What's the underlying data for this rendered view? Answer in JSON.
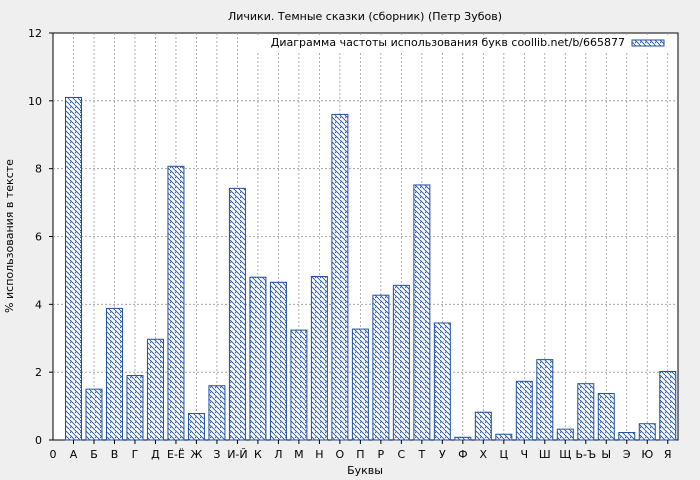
{
  "chart_data": {
    "type": "bar",
    "title": "Личики. Темные сказки (сборник) (Петр Зубов)",
    "xlabel": "Буквы",
    "ylabel": "% использования в тексте",
    "ylim": [
      0,
      12
    ],
    "yticks": [
      "0",
      "2",
      "4",
      "6",
      "8",
      "10",
      "12"
    ],
    "grid": true,
    "legend_position": "top-right",
    "x_origin_label": "0",
    "categories": [
      "А",
      "Б",
      "В",
      "Г",
      "Д",
      "Е-Ё",
      "Ж",
      "З",
      "И-Й",
      "К",
      "Л",
      "М",
      "Н",
      "О",
      "П",
      "Р",
      "С",
      "Т",
      "У",
      "Ф",
      "Х",
      "Ц",
      "Ч",
      "Ш",
      "Щ",
      "Ь-Ъ",
      "Ы",
      "Э",
      "Ю",
      "Я"
    ],
    "series": [
      {
        "name": "Диаграмма частоты использования букв coollib.net/b/665877",
        "color": "#1f4fa0",
        "values": [
          10.1,
          1.5,
          3.88,
          1.9,
          2.97,
          8.07,
          0.78,
          1.6,
          7.42,
          4.8,
          4.65,
          3.24,
          4.82,
          9.6,
          3.27,
          4.27,
          4.56,
          7.52,
          3.45,
          0.08,
          0.82,
          0.17,
          1.73,
          2.37,
          0.32,
          1.66,
          1.37,
          0.22,
          0.48,
          2.02
        ]
      }
    ]
  }
}
